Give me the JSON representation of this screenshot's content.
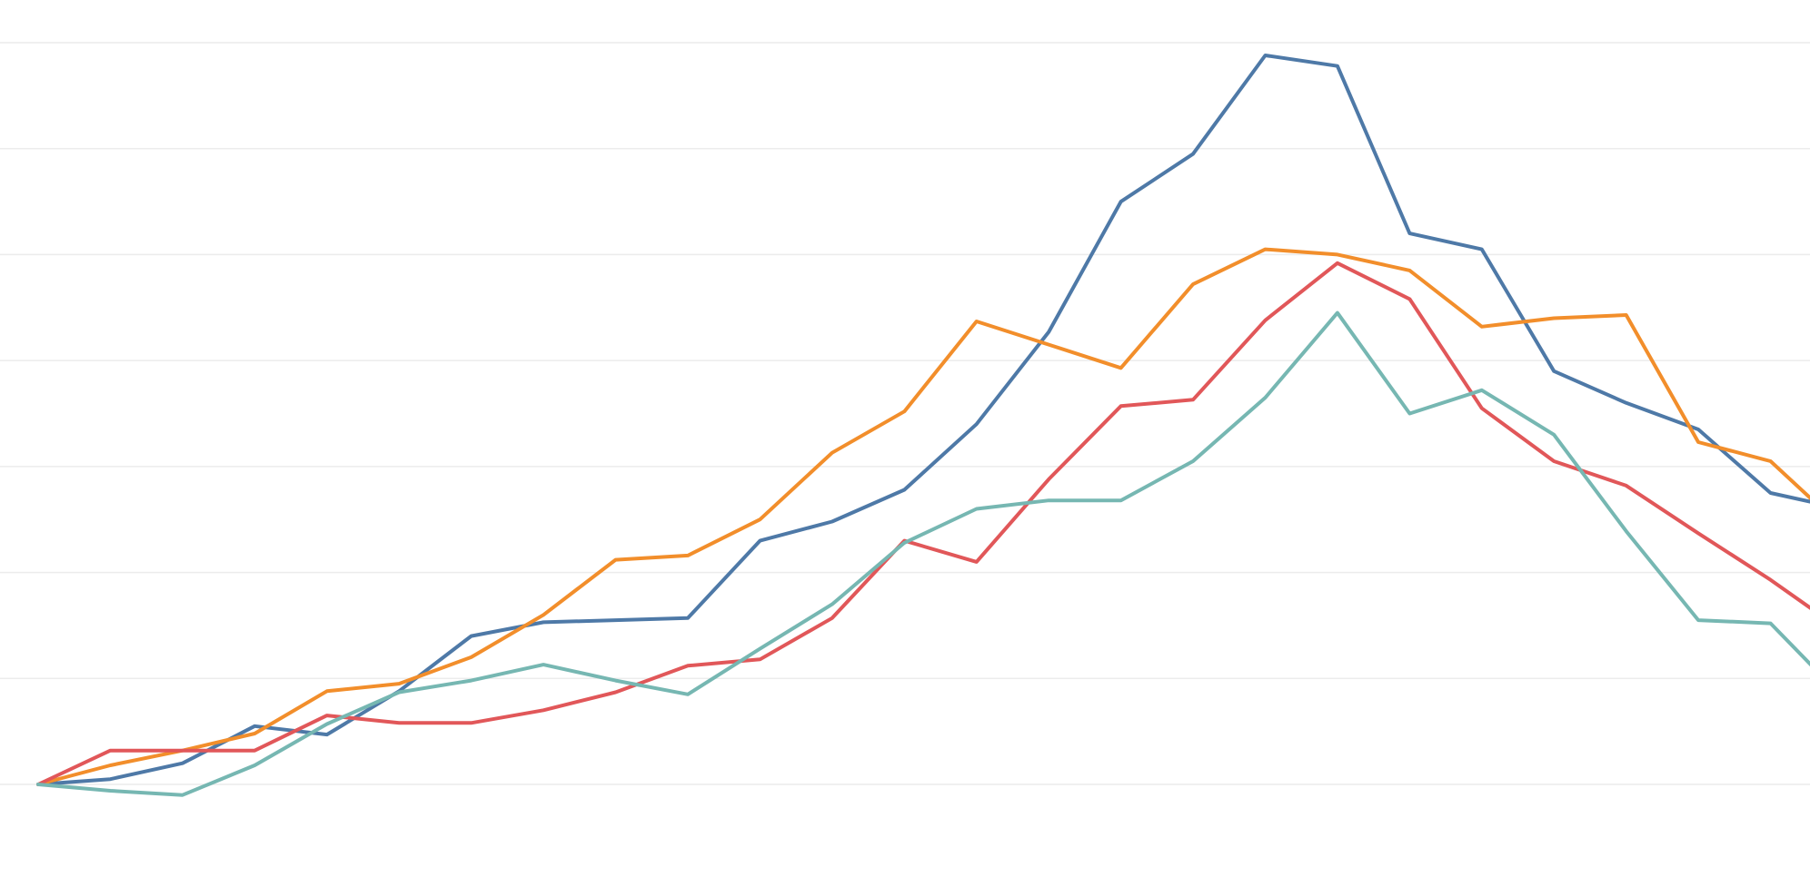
{
  "chart_data": {
    "type": "line",
    "title": "",
    "xlabel": "",
    "ylabel": "",
    "x": [
      0,
      1,
      2,
      3,
      4,
      5,
      6,
      7,
      8,
      9,
      10,
      11,
      12,
      13,
      14,
      15,
      16,
      17,
      18,
      19,
      20,
      21,
      22,
      23,
      24,
      25
    ],
    "xlim": [
      0,
      25
    ],
    "ylim": [
      0,
      7
    ],
    "y_gridlines": [
      0,
      1,
      2,
      3,
      4,
      5,
      6,
      7
    ],
    "grid": true,
    "legend": "none",
    "series": [
      {
        "color": "#4E79A7",
        "values": [
          0.0,
          0.05,
          0.2,
          0.55,
          0.47,
          0.88,
          1.4,
          1.53,
          1.55,
          1.57,
          2.3,
          2.48,
          2.78,
          3.4,
          4.27,
          5.5,
          5.95,
          6.88,
          6.78,
          5.2,
          5.05,
          3.9,
          3.6,
          3.35,
          2.75,
          2.6
        ]
      },
      {
        "color": "#F28E2B",
        "values": [
          0.0,
          0.18,
          0.32,
          0.48,
          0.88,
          0.95,
          1.2,
          1.6,
          2.12,
          2.16,
          2.5,
          3.13,
          3.52,
          4.37,
          4.15,
          3.93,
          4.72,
          5.05,
          5.0,
          4.85,
          4.32,
          4.4,
          4.43,
          3.23,
          3.05,
          2.42
        ]
      },
      {
        "color": "#E15759",
        "values": [
          0.0,
          0.32,
          0.32,
          0.32,
          0.65,
          0.58,
          0.58,
          0.7,
          0.87,
          1.12,
          1.18,
          1.57,
          2.3,
          2.1,
          2.88,
          3.57,
          3.63,
          4.38,
          4.92,
          4.58,
          3.55,
          3.05,
          2.82,
          2.37,
          1.93,
          1.45
        ]
      },
      {
        "color": "#76B7B2",
        "values": [
          0.0,
          -0.06,
          -0.1,
          0.18,
          0.57,
          0.87,
          0.98,
          1.13,
          0.98,
          0.85,
          1.28,
          1.7,
          2.28,
          2.6,
          2.68,
          2.68,
          3.05,
          3.65,
          4.45,
          3.5,
          3.72,
          3.3,
          2.39,
          1.55,
          1.52,
          0.82
        ]
      }
    ]
  }
}
